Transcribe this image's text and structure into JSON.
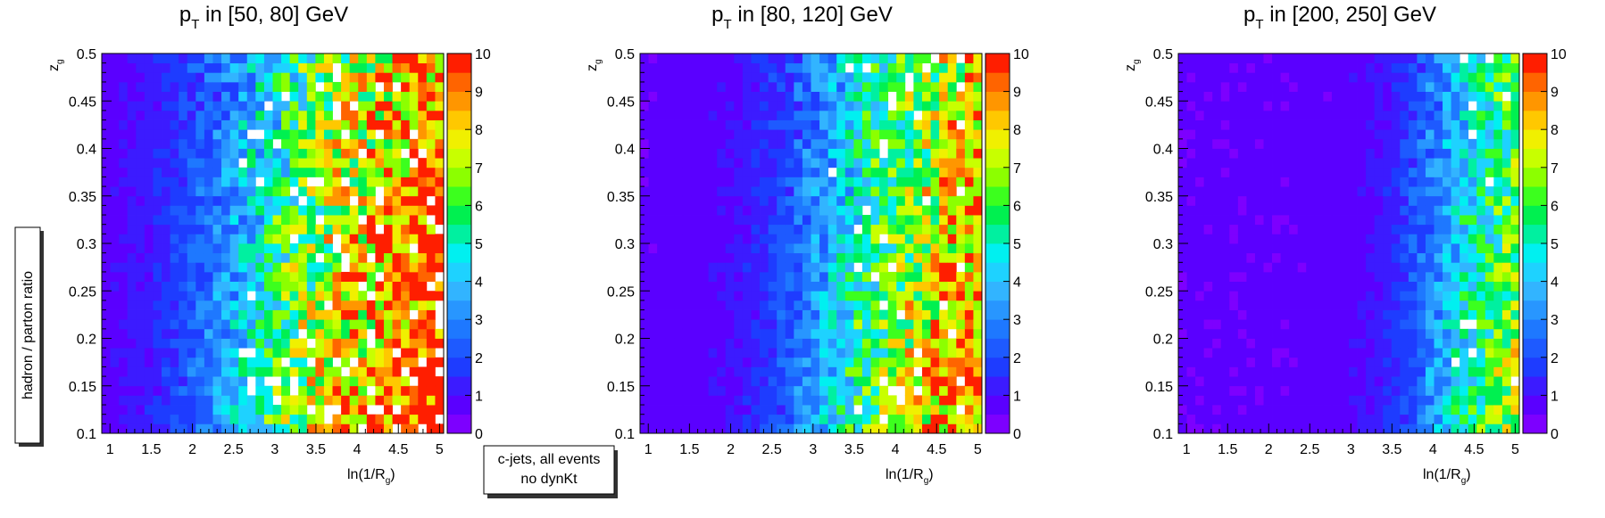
{
  "shared": {
    "ylabel_side": "hadron / parton ratio",
    "note_line1": "c-jets, all events",
    "note_line2": "no dynKt"
  },
  "chart_data": [
    {
      "type": "heatmap",
      "title_main": "p",
      "title_sub": "T",
      "title_rest": " in [50, 80] GeV",
      "xlabel_main": "ln(1/R",
      "xlabel_sub": "g",
      "xlabel_end": ")",
      "ylabel_main": "z",
      "ylabel_sub": "g",
      "xlim": [
        0.9,
        5.05
      ],
      "ylim": [
        0.1,
        0.5
      ],
      "zlim": [
        0,
        10
      ],
      "xticks": [
        "1",
        "1.5",
        "2",
        "2.5",
        "3",
        "3.5",
        "4",
        "4.5",
        "5"
      ],
      "yticks": [
        "0.1",
        "0.15",
        "0.2",
        "0.25",
        "0.3",
        "0.35",
        "0.4",
        "0.45",
        "0.5"
      ],
      "zticks": [
        "0",
        "1",
        "2",
        "3",
        "4",
        "5",
        "6",
        "7",
        "8",
        "9",
        "10"
      ],
      "bins": {
        "nx": 40,
        "ny": 40
      },
      "trend": {
        "transition_center": 2.4,
        "transition_width": 0.45,
        "high_level": 4.5,
        "high_growth": 1.4,
        "noise": 2.2,
        "white_prob": 0.06,
        "seed": 11
      }
    },
    {
      "type": "heatmap",
      "title_main": "p",
      "title_sub": "T",
      "title_rest": " in [80, 120] GeV",
      "xlabel_main": "ln(1/R",
      "xlabel_sub": "g",
      "xlabel_end": ")",
      "ylabel_main": "z",
      "ylabel_sub": "g",
      "xlim": [
        0.9,
        5.05
      ],
      "ylim": [
        0.1,
        0.5
      ],
      "zlim": [
        0,
        10
      ],
      "xticks": [
        "1",
        "1.5",
        "2",
        "2.5",
        "3",
        "3.5",
        "4",
        "4.5",
        "5"
      ],
      "yticks": [
        "0.1",
        "0.15",
        "0.2",
        "0.25",
        "0.3",
        "0.35",
        "0.4",
        "0.45",
        "0.5"
      ],
      "zticks": [
        "0",
        "1",
        "2",
        "3",
        "4",
        "5",
        "6",
        "7",
        "8",
        "9",
        "10"
      ],
      "bins": {
        "nx": 40,
        "ny": 40
      },
      "trend": {
        "transition_center": 3.0,
        "transition_width": 0.4,
        "high_level": 4.2,
        "high_growth": 1.5,
        "noise": 2.0,
        "white_prob": 0.035,
        "seed": 23
      }
    },
    {
      "type": "heatmap",
      "title_main": "p",
      "title_sub": "T",
      "title_rest": " in [200, 250] GeV",
      "xlabel_main": "ln(1/R",
      "xlabel_sub": "g",
      "xlabel_end": ")",
      "ylabel_main": "z",
      "ylabel_sub": "g",
      "xlim": [
        0.9,
        5.05
      ],
      "ylim": [
        0.1,
        0.5
      ],
      "zlim": [
        0,
        10
      ],
      "xticks": [
        "1",
        "1.5",
        "2",
        "2.5",
        "3",
        "3.5",
        "4",
        "4.5",
        "5"
      ],
      "yticks": [
        "0.1",
        "0.15",
        "0.2",
        "0.25",
        "0.3",
        "0.35",
        "0.4",
        "0.45",
        "0.5"
      ],
      "zticks": [
        "0",
        "1",
        "2",
        "3",
        "4",
        "5",
        "6",
        "7",
        "8",
        "9",
        "10"
      ],
      "bins": {
        "nx": 40,
        "ny": 40
      },
      "trend": {
        "transition_center": 3.95,
        "transition_width": 0.3,
        "high_level": 3.6,
        "high_growth": 1.6,
        "noise": 1.7,
        "white_prob": 0.015,
        "seed": 37
      }
    }
  ]
}
